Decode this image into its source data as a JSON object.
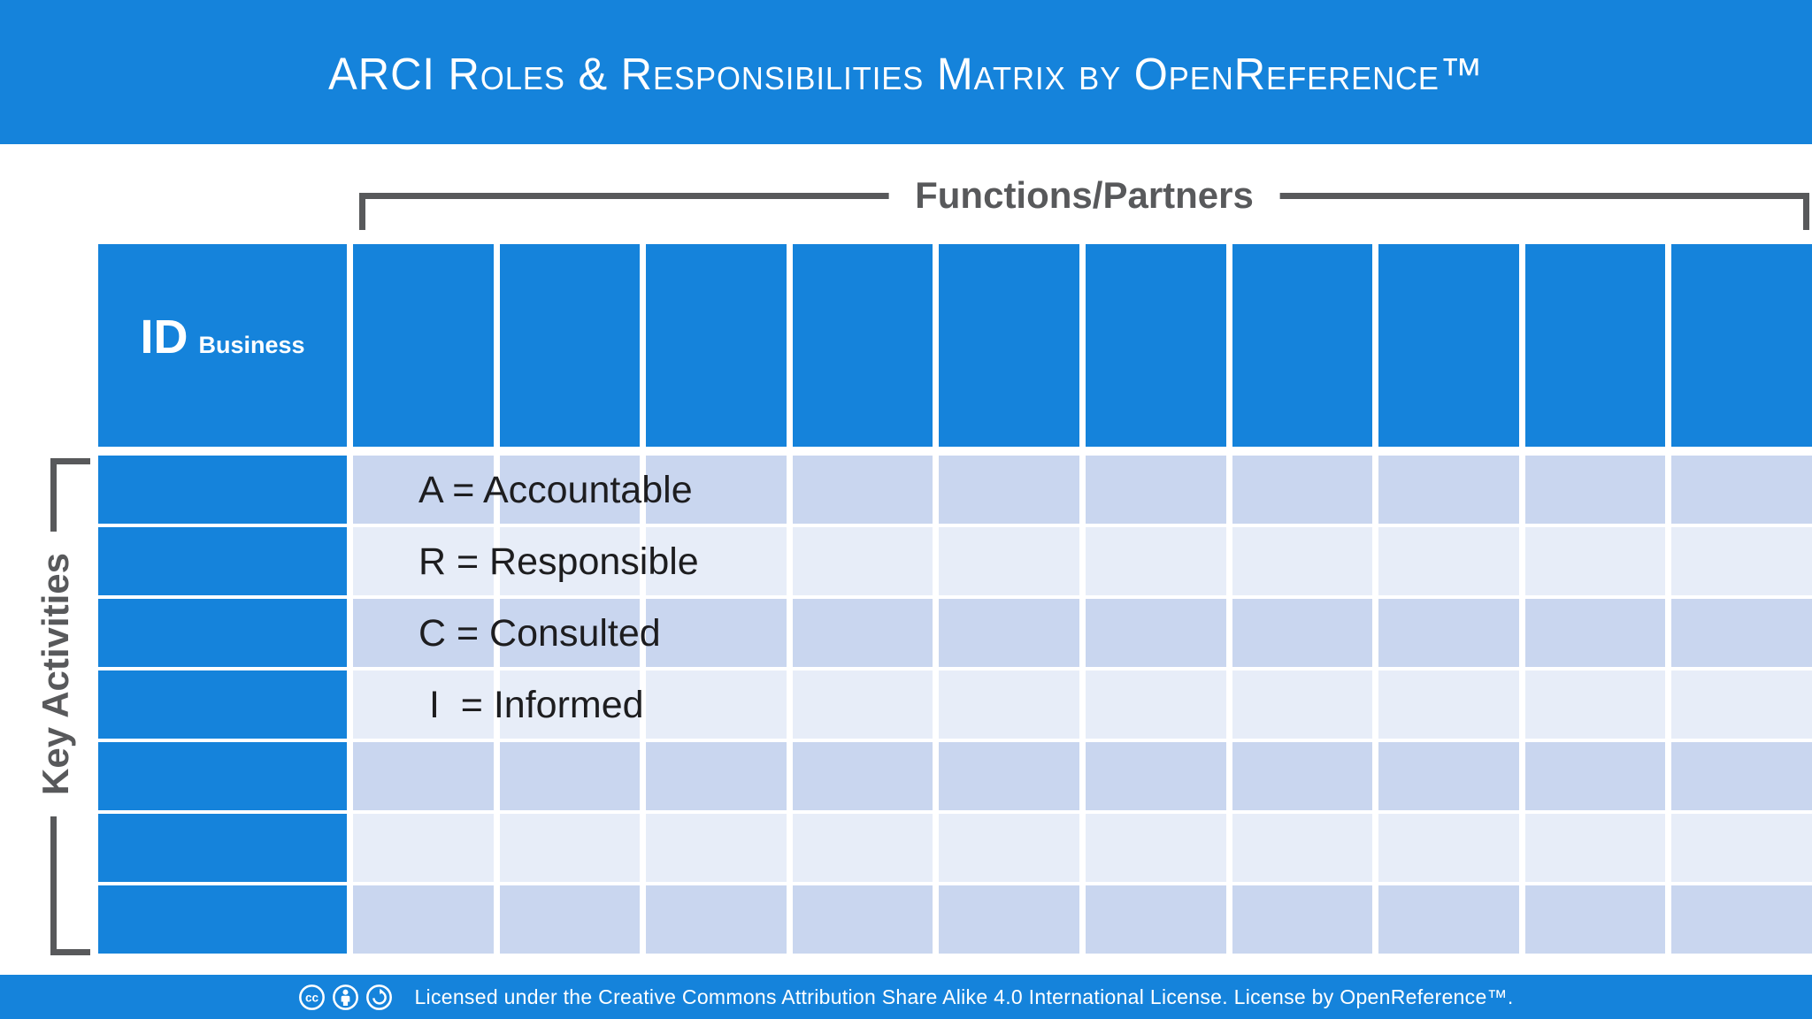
{
  "colors": {
    "brand_blue": "#1583DB",
    "row_dark": "#C9D6EF",
    "row_light": "#E7EDF8",
    "bracket_gray": "#58595B",
    "legend_text": "#1D1D1F"
  },
  "header": {
    "title": "ARCI Roles & Responsibilities Matrix by OpenReference™"
  },
  "matrix": {
    "columns_group_label": "Functions/Partners",
    "rows_group_label": "Key Activities",
    "id_column": {
      "label": "ID",
      "sublabel": "Business"
    },
    "function_column_count": 10,
    "activity_row_count": 7,
    "legend": [
      "A = Accountable",
      "R = Responsible",
      "C = Consulted",
      " I  = Informed"
    ]
  },
  "footer": {
    "icons": [
      "cc-icon",
      "attribution-icon",
      "share-alike-icon"
    ],
    "license_text": "Licensed under the Creative Commons Attribution Share Alike 4.0 International License. License by OpenReference™."
  }
}
